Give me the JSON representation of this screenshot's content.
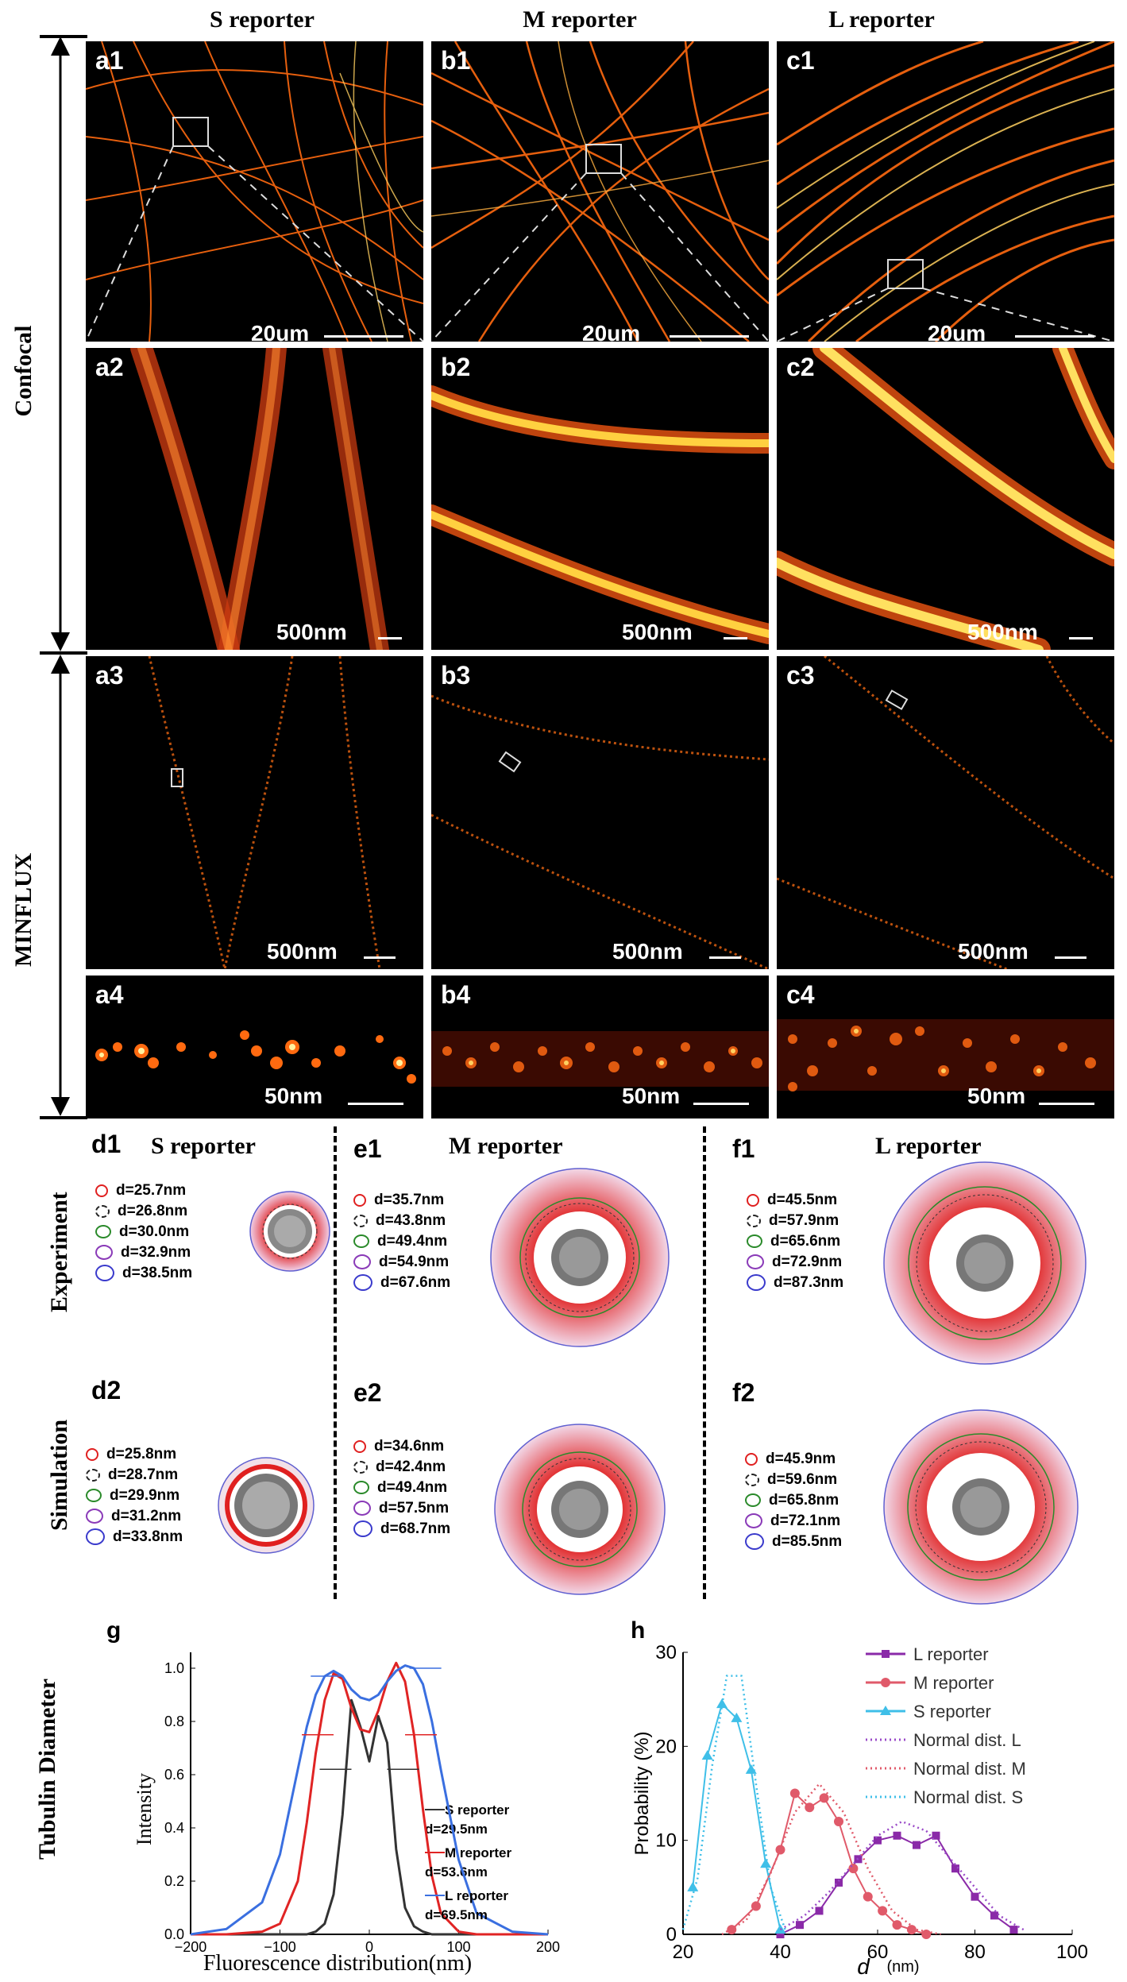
{
  "column_headers": [
    "S reporter",
    "M reporter",
    "L reporter"
  ],
  "row_labels": {
    "confocal": "Confocal",
    "minflux": "MINFLUX"
  },
  "panels": {
    "a1": {
      "label": "a1",
      "scale": "20um"
    },
    "b1": {
      "label": "b1",
      "scale": "20um"
    },
    "c1": {
      "label": "c1",
      "scale": "20um"
    },
    "a2": {
      "label": "a2",
      "scale": "500nm"
    },
    "b2": {
      "label": "b2",
      "scale": "500nm"
    },
    "c2": {
      "label": "c2",
      "scale": "500nm"
    },
    "a3": {
      "label": "a3",
      "scale": "500nm"
    },
    "b3": {
      "label": "b3",
      "scale": "500nm"
    },
    "c3": {
      "label": "c3",
      "scale": "500nm"
    },
    "a4": {
      "label": "a4",
      "scale": "50nm"
    },
    "b4": {
      "label": "b4",
      "scale": "50nm"
    },
    "c4": {
      "label": "c4",
      "scale": "50nm"
    }
  },
  "diagram_rows": {
    "experiment": "Experiment",
    "simulation": "Simulation"
  },
  "diagram_panels": {
    "d1": {
      "label": "d1",
      "title": "S reporter",
      "values": [
        "d=25.7nm",
        "d=26.8nm",
        "d=30.0nm",
        "d=32.9nm",
        "d=38.5nm"
      ]
    },
    "e1": {
      "label": "e1",
      "title": "M reporter",
      "values": [
        "d=35.7nm",
        "d=43.8nm",
        "d=49.4nm",
        "d=54.9nm",
        "d=67.6nm"
      ]
    },
    "f1": {
      "label": "f1",
      "title": "L reporter",
      "values": [
        "d=45.5nm",
        "d=57.9nm",
        "d=65.6nm",
        "d=72.9nm",
        "d=87.3nm"
      ]
    },
    "d2": {
      "label": "d2",
      "title": "",
      "values": [
        "d=25.8nm",
        "d=28.7nm",
        "d=29.9nm",
        "d=31.2nm",
        "d=33.8nm"
      ]
    },
    "e2": {
      "label": "e2",
      "title": "",
      "values": [
        "d=34.6nm",
        "d=42.4nm",
        "d=49.4nm",
        "d=57.5nm",
        "d=68.7nm"
      ]
    },
    "f2": {
      "label": "f2",
      "title": "",
      "values": [
        "d=45.9nm",
        "d=59.6nm",
        "d=65.8nm",
        "d=72.1nm",
        "d=85.5nm"
      ]
    }
  },
  "legend_ring_colors": [
    "#e02020",
    "#222222",
    "#2a8a2a",
    "#8a3ab8",
    "#3a3acc"
  ],
  "bottom_side_label": "Tubulin Diameter",
  "chart_data": [
    {
      "panel_label": "g",
      "type": "line",
      "xlabel": "Fluorescence distribution(nm)",
      "ylabel": "Intensity",
      "xlim": [
        -200,
        200
      ],
      "ylim": [
        0.0,
        1.0
      ],
      "xticks": [
        -200,
        -100,
        0,
        100,
        200
      ],
      "xtick_labels": [
        "−200",
        "−100",
        "0",
        "100",
        "200"
      ],
      "yticks": [
        0.0,
        0.2,
        0.4,
        0.6,
        0.8,
        1.0
      ],
      "ytick_labels": [
        "0.0",
        "0.2",
        "0.4",
        "0.6",
        "0.8",
        "1.0"
      ],
      "x": [
        -200,
        -160,
        -120,
        -100,
        -80,
        -70,
        -60,
        -50,
        -40,
        -30,
        -20,
        -10,
        0,
        10,
        20,
        30,
        40,
        50,
        60,
        70,
        80,
        100,
        120,
        160,
        200
      ],
      "series": [
        {
          "name": "S reporter",
          "annotation": "d=29.5nm",
          "color": "#333333",
          "values": [
            0.0,
            0.0,
            0.0,
            0.0,
            0.0,
            0.0,
            0.01,
            0.04,
            0.15,
            0.45,
            0.88,
            0.78,
            0.65,
            0.82,
            0.72,
            0.32,
            0.1,
            0.03,
            0.01,
            0.0,
            0.0,
            0.0,
            0.0,
            0.0,
            0.0
          ]
        },
        {
          "name": "M reporter",
          "annotation": "d=53.6nm",
          "color": "#e02424",
          "values": [
            0.0,
            0.0,
            0.01,
            0.04,
            0.2,
            0.42,
            0.68,
            0.88,
            0.98,
            0.96,
            0.85,
            0.77,
            0.76,
            0.84,
            0.95,
            1.02,
            0.95,
            0.75,
            0.47,
            0.22,
            0.08,
            0.01,
            0.0,
            0.0,
            0.0
          ]
        },
        {
          "name": "L reporter",
          "annotation": "d=69.5nm",
          "color": "#3a6fe0",
          "values": [
            0.0,
            0.02,
            0.12,
            0.3,
            0.62,
            0.78,
            0.9,
            0.97,
            0.99,
            0.97,
            0.92,
            0.89,
            0.88,
            0.9,
            0.95,
            0.99,
            1.01,
            1.0,
            0.94,
            0.8,
            0.62,
            0.28,
            0.08,
            0.01,
            0.0
          ]
        }
      ]
    },
    {
      "panel_label": "h",
      "type": "line",
      "xlabel": "d",
      "xlabel_unit": "(nm)",
      "ylabel": "Probability (%)",
      "xlim": [
        20,
        100
      ],
      "ylim": [
        0,
        30
      ],
      "xticks": [
        20,
        40,
        60,
        80,
        100
      ],
      "yticks": [
        0,
        10,
        20,
        30
      ],
      "series": [
        {
          "name": "L reporter",
          "color": "#8a2aa8",
          "marker": "square",
          "x": [
            40,
            44,
            48,
            52,
            56,
            60,
            64,
            68,
            72,
            76,
            80,
            84,
            88
          ],
          "values": [
            0.0,
            1.0,
            2.5,
            5.5,
            8.0,
            10.0,
            10.5,
            9.5,
            10.5,
            7.0,
            4.0,
            2.0,
            0.5
          ]
        },
        {
          "name": "M reporter",
          "color": "#e05a6a",
          "marker": "circle",
          "x": [
            30,
            35,
            40,
            43,
            46,
            49,
            52,
            55,
            58,
            61,
            64,
            67,
            70
          ],
          "values": [
            0.5,
            3.0,
            9.0,
            15.0,
            13.5,
            14.5,
            12.0,
            7.0,
            4.0,
            2.5,
            1.0,
            0.5,
            0.0
          ]
        },
        {
          "name": "S reporter",
          "color": "#3fbfe8",
          "marker": "triangle",
          "x": [
            22,
            25,
            28,
            31,
            34,
            37,
            40
          ],
          "values": [
            5.0,
            19.0,
            24.5,
            23.0,
            17.5,
            7.5,
            0.5
          ]
        },
        {
          "name": "Normal dist. L",
          "color": "#9a4ac8",
          "style": "dotted",
          "x": [
            40,
            45,
            50,
            55,
            60,
            65,
            70,
            75,
            80,
            85,
            90
          ],
          "values": [
            0.5,
            2.0,
            4.5,
            7.5,
            10.5,
            12.0,
            11.0,
            8.0,
            5.0,
            2.0,
            0.5
          ]
        },
        {
          "name": "Normal dist. M",
          "color": "#e05a6a",
          "style": "dotted",
          "x": [
            28,
            33,
            38,
            43,
            48,
            53,
            58,
            63,
            68,
            73
          ],
          "values": [
            0.0,
            1.5,
            6.5,
            13.0,
            16.0,
            13.0,
            7.0,
            2.5,
            0.5,
            0.0
          ]
        },
        {
          "name": "Normal dist. S",
          "color": "#3fbfe8",
          "style": "dotted",
          "x": [
            20,
            23,
            26,
            29,
            32,
            35,
            38,
            41
          ],
          "values": [
            0.5,
            6.0,
            18.0,
            27.5,
            27.5,
            16.0,
            5.0,
            0.5
          ]
        }
      ]
    }
  ]
}
